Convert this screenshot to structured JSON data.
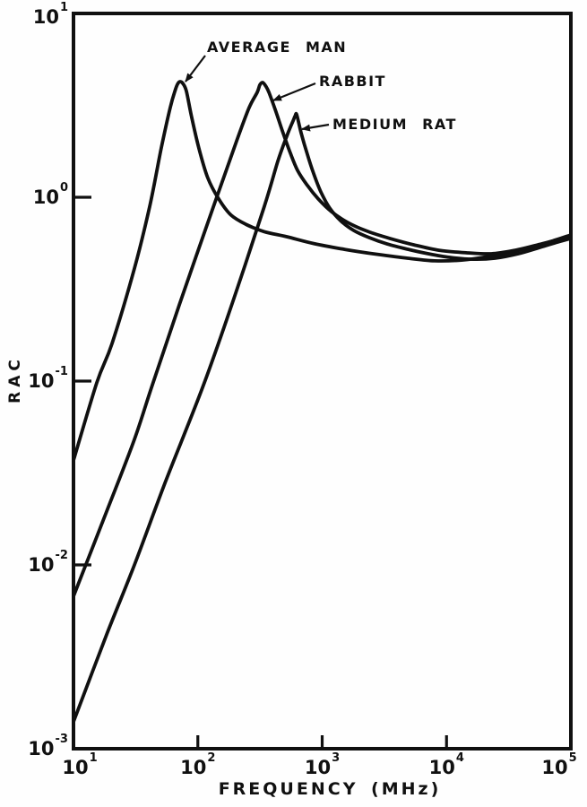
{
  "figure": {
    "ink_color": "#101010",
    "paper_color": "#fefefe"
  },
  "chart_data": {
    "type": "line",
    "x_scale": "log",
    "y_scale": "log",
    "title": "",
    "xlabel": "FREQUENCY (MHz)",
    "ylabel": "RAC",
    "xlim": [
      10,
      100000
    ],
    "ylim": [
      0.001,
      10
    ],
    "grid": false,
    "legend_position": "inline-annotations",
    "x_tick_exponents": [
      1,
      2,
      3,
      4,
      5
    ],
    "y_tick_exponents": [
      1,
      0,
      -1,
      -2,
      -3
    ],
    "line_color": "#101010",
    "series": [
      {
        "name": "AVERAGE MAN",
        "peak": {
          "frequency_mhz": 72,
          "rac": 4.26
        },
        "points": [
          [
            10,
            0.037
          ],
          [
            15.4,
            0.098
          ],
          [
            20.4,
            0.16
          ],
          [
            30.9,
            0.41
          ],
          [
            41,
            0.89
          ],
          [
            50.8,
            1.85
          ],
          [
            60,
            3.08
          ],
          [
            66,
            3.85
          ],
          [
            69,
            4.15
          ],
          [
            72,
            4.26
          ],
          [
            76,
            4.15
          ],
          [
            81,
            3.76
          ],
          [
            89,
            2.75
          ],
          [
            102,
            1.85
          ],
          [
            120,
            1.28
          ],
          [
            147,
            0.98
          ],
          [
            185,
            0.8
          ],
          [
            246,
            0.71
          ],
          [
            343,
            0.65
          ],
          [
            519,
            0.61
          ],
          [
            855,
            0.56
          ],
          [
            1530,
            0.52
          ],
          [
            2730,
            0.49
          ],
          [
            4880,
            0.466
          ],
          [
            8030,
            0.451
          ],
          [
            13200,
            0.455
          ],
          [
            21700,
            0.476
          ],
          [
            35700,
            0.509
          ],
          [
            56000,
            0.551
          ],
          [
            78000,
            0.59
          ],
          [
            100000,
            0.624
          ]
        ]
      },
      {
        "name": "RABBIT",
        "peak": {
          "frequency_mhz": 332,
          "rac": 4.21
        },
        "points": [
          [
            10,
            0.00675
          ],
          [
            18.8,
            0.0201
          ],
          [
            30.9,
            0.0482
          ],
          [
            43,
            0.095
          ],
          [
            71,
            0.26
          ],
          [
            138,
            0.95
          ],
          [
            208,
            2.08
          ],
          [
            259,
            3.08
          ],
          [
            300,
            3.72
          ],
          [
            315,
            4.08
          ],
          [
            332,
            4.21
          ],
          [
            352,
            4.02
          ],
          [
            373,
            3.72
          ],
          [
            419,
            3.0
          ],
          [
            478,
            2.3
          ],
          [
            546,
            1.79
          ],
          [
            634,
            1.4
          ],
          [
            760,
            1.16
          ],
          [
            929,
            0.98
          ],
          [
            1190,
            0.835
          ],
          [
            1600,
            0.73
          ],
          [
            2310,
            0.653
          ],
          [
            3500,
            0.597
          ],
          [
            5480,
            0.551
          ],
          [
            8710,
            0.515
          ],
          [
            14350,
            0.499
          ],
          [
            22900,
            0.493
          ],
          [
            35700,
            0.515
          ],
          [
            54100,
            0.551
          ],
          [
            75300,
            0.583
          ],
          [
            100000,
            0.617
          ]
        ]
      },
      {
        "name": "MEDIUM RAT",
        "peak": {
          "frequency_mhz": 624,
          "rac": 2.81
        },
        "points": [
          [
            10,
            0.0014
          ],
          [
            18.8,
            0.0043
          ],
          [
            30.9,
            0.01
          ],
          [
            55,
            0.0284
          ],
          [
            111,
            0.095
          ],
          [
            198,
            0.29
          ],
          [
            343,
            0.894
          ],
          [
            440,
            1.57
          ],
          [
            519,
            2.15
          ],
          [
            583,
            2.6
          ],
          [
            605,
            2.76
          ],
          [
            624,
            2.81
          ],
          [
            677,
            2.24
          ],
          [
            760,
            1.71
          ],
          [
            855,
            1.34
          ],
          [
            975,
            1.07
          ],
          [
            1150,
            0.873
          ],
          [
            1405,
            0.746
          ],
          [
            1800,
            0.659
          ],
          [
            2390,
            0.603
          ],
          [
            3330,
            0.557
          ],
          [
            4880,
            0.521
          ],
          [
            7140,
            0.493
          ],
          [
            10600,
            0.471
          ],
          [
            16400,
            0.46
          ],
          [
            24400,
            0.466
          ],
          [
            37600,
            0.493
          ],
          [
            56000,
            0.533
          ],
          [
            78000,
            0.57
          ],
          [
            100000,
            0.597
          ]
        ]
      }
    ],
    "annotations": [
      {
        "label": "AVERAGE MAN"
      },
      {
        "label": "RABBIT"
      },
      {
        "label": "MEDIUM RAT"
      }
    ]
  }
}
